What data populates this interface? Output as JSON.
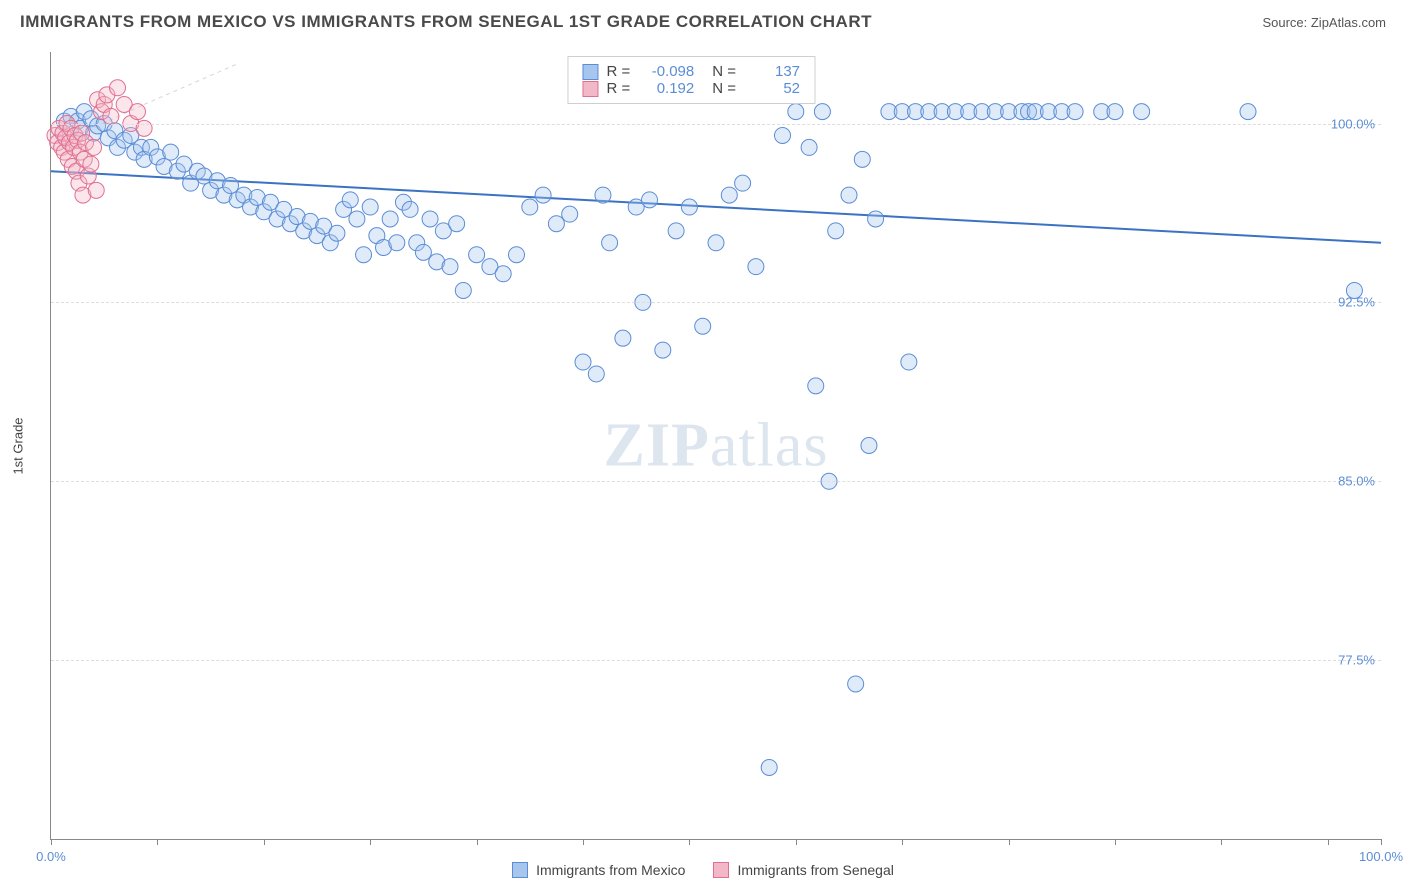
{
  "title": "IMMIGRANTS FROM MEXICO VS IMMIGRANTS FROM SENEGAL 1ST GRADE CORRELATION CHART",
  "source_label": "Source: ZipAtlas.com",
  "watermark": {
    "bold": "ZIP",
    "rest": "atlas"
  },
  "chart": {
    "type": "scatter",
    "xlabel": "",
    "ylabel": "1st Grade",
    "xlim": [
      0,
      100
    ],
    "ylim": [
      70,
      103
    ],
    "x_ticks": [
      0,
      8,
      16,
      24,
      32,
      40,
      48,
      56,
      64,
      72,
      80,
      88,
      96,
      100
    ],
    "x_tick_labels": {
      "0": "0.0%",
      "100": "100.0%"
    },
    "y_gridlines": [
      100.0,
      92.5,
      85.0,
      77.5
    ],
    "y_tick_labels": [
      "100.0%",
      "92.5%",
      "85.0%",
      "77.5%"
    ],
    "background_color": "#ffffff",
    "grid_color": "#dddddd",
    "axis_color": "#888888",
    "tick_label_color": "#5b8dd6",
    "marker_radius": 8,
    "series": [
      {
        "name": "Immigrants from Mexico",
        "fill": "#a7c6ed",
        "stroke": "#5b8dd6",
        "R": "-0.098",
        "N": "137",
        "trend": {
          "x1": 0,
          "y1": 98.0,
          "x2": 100,
          "y2": 95.0,
          "color": "#3b72c4",
          "width": 2
        },
        "points": [
          [
            1.0,
            100.1
          ],
          [
            1.5,
            100.3
          ],
          [
            2.0,
            100.1
          ],
          [
            2.2,
            99.8
          ],
          [
            2.5,
            100.5
          ],
          [
            3.0,
            100.2
          ],
          [
            3.2,
            99.6
          ],
          [
            3.5,
            99.9
          ],
          [
            4.0,
            100.0
          ],
          [
            4.3,
            99.4
          ],
          [
            4.8,
            99.7
          ],
          [
            5.0,
            99.0
          ],
          [
            5.5,
            99.3
          ],
          [
            6.0,
            99.5
          ],
          [
            6.3,
            98.8
          ],
          [
            6.8,
            99.0
          ],
          [
            7.0,
            98.5
          ],
          [
            7.5,
            99.0
          ],
          [
            8.0,
            98.6
          ],
          [
            8.5,
            98.2
          ],
          [
            9.0,
            98.8
          ],
          [
            9.5,
            98.0
          ],
          [
            10.0,
            98.3
          ],
          [
            10.5,
            97.5
          ],
          [
            11.0,
            98.0
          ],
          [
            11.5,
            97.8
          ],
          [
            12.0,
            97.2
          ],
          [
            12.5,
            97.6
          ],
          [
            13.0,
            97.0
          ],
          [
            13.5,
            97.4
          ],
          [
            14.0,
            96.8
          ],
          [
            14.5,
            97.0
          ],
          [
            15.0,
            96.5
          ],
          [
            15.5,
            96.9
          ],
          [
            16.0,
            96.3
          ],
          [
            16.5,
            96.7
          ],
          [
            17.0,
            96.0
          ],
          [
            17.5,
            96.4
          ],
          [
            18.0,
            95.8
          ],
          [
            18.5,
            96.1
          ],
          [
            19.0,
            95.5
          ],
          [
            19.5,
            95.9
          ],
          [
            20.0,
            95.3
          ],
          [
            20.5,
            95.7
          ],
          [
            21.0,
            95.0
          ],
          [
            21.5,
            95.4
          ],
          [
            22.0,
            96.4
          ],
          [
            22.5,
            96.8
          ],
          [
            23.0,
            96.0
          ],
          [
            23.5,
            94.5
          ],
          [
            24.0,
            96.5
          ],
          [
            24.5,
            95.3
          ],
          [
            25.0,
            94.8
          ],
          [
            25.5,
            96.0
          ],
          [
            26.0,
            95.0
          ],
          [
            26.5,
            96.7
          ],
          [
            27.0,
            96.4
          ],
          [
            27.5,
            95.0
          ],
          [
            28.0,
            94.6
          ],
          [
            28.5,
            96.0
          ],
          [
            29.0,
            94.2
          ],
          [
            29.5,
            95.5
          ],
          [
            30.0,
            94.0
          ],
          [
            30.5,
            95.8
          ],
          [
            31.0,
            93.0
          ],
          [
            32.0,
            94.5
          ],
          [
            33.0,
            94.0
          ],
          [
            34.0,
            93.7
          ],
          [
            35.0,
            94.5
          ],
          [
            36.0,
            96.5
          ],
          [
            37.0,
            97.0
          ],
          [
            38.0,
            95.8
          ],
          [
            39.0,
            96.2
          ],
          [
            40.0,
            90.0
          ],
          [
            41.0,
            89.5
          ],
          [
            41.5,
            97.0
          ],
          [
            42.0,
            95.0
          ],
          [
            43.0,
            91.0
          ],
          [
            44.0,
            96.5
          ],
          [
            44.5,
            92.5
          ],
          [
            45.0,
            96.8
          ],
          [
            46.0,
            90.5
          ],
          [
            47.0,
            95.5
          ],
          [
            48.0,
            96.5
          ],
          [
            49.0,
            91.5
          ],
          [
            50.0,
            95.0
          ],
          [
            51.0,
            97.0
          ],
          [
            52.0,
            97.5
          ],
          [
            53.0,
            94.0
          ],
          [
            54.0,
            73.0
          ],
          [
            55.0,
            99.5
          ],
          [
            56.0,
            100.5
          ],
          [
            57.0,
            99.0
          ],
          [
            57.5,
            89.0
          ],
          [
            58.0,
            100.5
          ],
          [
            58.5,
            85.0
          ],
          [
            59.0,
            95.5
          ],
          [
            60.0,
            97.0
          ],
          [
            60.5,
            76.5
          ],
          [
            61.0,
            98.5
          ],
          [
            61.5,
            86.5
          ],
          [
            62.0,
            96.0
          ],
          [
            63.0,
            100.5
          ],
          [
            64.0,
            100.5
          ],
          [
            64.5,
            90.0
          ],
          [
            65.0,
            100.5
          ],
          [
            66.0,
            100.5
          ],
          [
            67.0,
            100.5
          ],
          [
            68.0,
            100.5
          ],
          [
            69.0,
            100.5
          ],
          [
            70.0,
            100.5
          ],
          [
            71.0,
            100.5
          ],
          [
            72.0,
            100.5
          ],
          [
            73.0,
            100.5
          ],
          [
            73.5,
            100.5
          ],
          [
            74.0,
            100.5
          ],
          [
            75.0,
            100.5
          ],
          [
            76.0,
            100.5
          ],
          [
            77.0,
            100.5
          ],
          [
            79.0,
            100.5
          ],
          [
            80.0,
            100.5
          ],
          [
            82.0,
            100.5
          ],
          [
            90.0,
            100.5
          ],
          [
            98.0,
            93.0
          ]
        ]
      },
      {
        "name": "Immigrants from Senegal",
        "fill": "#f3b8c7",
        "stroke": "#e06f93",
        "R": "0.192",
        "N": "52",
        "trend": {
          "x1": 0,
          "y1": 99.0,
          "x2": 7,
          "y2": 100.8,
          "dashed": true,
          "extend_to": [
            14,
            102.5
          ],
          "color": "#d6d6d6",
          "width": 1
        },
        "points": [
          [
            0.3,
            99.5
          ],
          [
            0.5,
            99.2
          ],
          [
            0.6,
            99.8
          ],
          [
            0.8,
            99.0
          ],
          [
            0.9,
            99.6
          ],
          [
            1.0,
            98.8
          ],
          [
            1.1,
            99.4
          ],
          [
            1.2,
            100.0
          ],
          [
            1.3,
            98.5
          ],
          [
            1.4,
            99.2
          ],
          [
            1.5,
            99.8
          ],
          [
            1.6,
            98.2
          ],
          [
            1.7,
            99.0
          ],
          [
            1.8,
            99.5
          ],
          [
            1.9,
            98.0
          ],
          [
            2.0,
            99.3
          ],
          [
            2.1,
            97.5
          ],
          [
            2.2,
            98.8
          ],
          [
            2.3,
            99.6
          ],
          [
            2.4,
            97.0
          ],
          [
            2.5,
            98.5
          ],
          [
            2.6,
            99.2
          ],
          [
            2.8,
            97.8
          ],
          [
            3.0,
            98.3
          ],
          [
            3.2,
            99.0
          ],
          [
            3.4,
            97.2
          ],
          [
            3.5,
            101.0
          ],
          [
            3.8,
            100.5
          ],
          [
            4.0,
            100.8
          ],
          [
            4.2,
            101.2
          ],
          [
            4.5,
            100.3
          ],
          [
            5.0,
            101.5
          ],
          [
            5.5,
            100.8
          ],
          [
            6.0,
            100.0
          ],
          [
            6.5,
            100.5
          ],
          [
            7.0,
            99.8
          ]
        ]
      }
    ]
  },
  "stats_legend": {
    "rows": [
      {
        "swatch_fill": "#a7c6ed",
        "swatch_stroke": "#5b8dd6",
        "R_label": "R =",
        "R": "-0.098",
        "N_label": "N =",
        "N": "137"
      },
      {
        "swatch_fill": "#f3b8c7",
        "swatch_stroke": "#e06f93",
        "R_label": "R =",
        "R": "0.192",
        "N_label": "N =",
        "N": "52"
      }
    ]
  },
  "bottom_legend": {
    "items": [
      {
        "fill": "#a7c6ed",
        "stroke": "#5b8dd6",
        "label": "Immigrants from Mexico"
      },
      {
        "fill": "#f3b8c7",
        "stroke": "#e06f93",
        "label": "Immigrants from Senegal"
      }
    ]
  }
}
